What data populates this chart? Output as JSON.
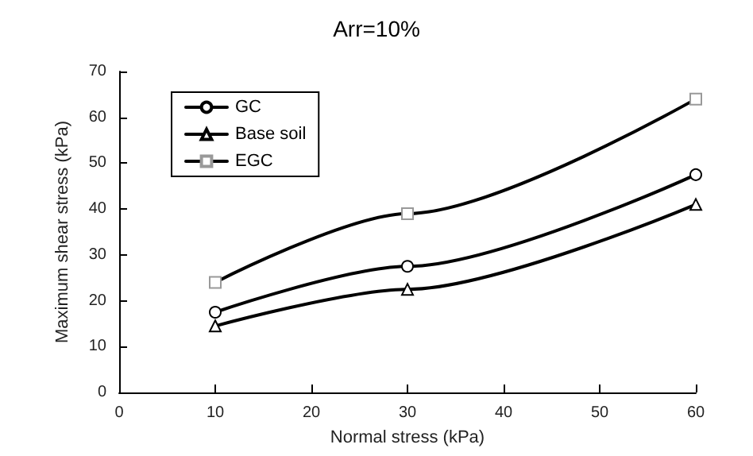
{
  "chart_data": {
    "type": "line",
    "title": "Arr=10%",
    "xlabel": "Normal stress (kPa)",
    "ylabel": "Maximum shear stress (kPa)",
    "x": [
      10,
      30,
      60
    ],
    "series": [
      {
        "name": "GC",
        "color": "#000000",
        "marker": "circle",
        "values": [
          17.5,
          27.5,
          47.5
        ]
      },
      {
        "name": "Base soil",
        "color": "#000000",
        "marker": "triangle",
        "values": [
          14.5,
          22.5,
          41
        ]
      },
      {
        "name": "EGC",
        "color": "#000000",
        "marker": "square",
        "values": [
          24,
          39,
          64
        ]
      }
    ],
    "xlim": [
      0,
      60
    ],
    "xticks": [
      0,
      10,
      20,
      30,
      40,
      50,
      60
    ],
    "ylim": [
      0,
      70
    ],
    "yticks": [
      0,
      10,
      20,
      30,
      40,
      50,
      60,
      70
    ],
    "grid": false,
    "legend": "top left",
    "line_style": "solid"
  }
}
